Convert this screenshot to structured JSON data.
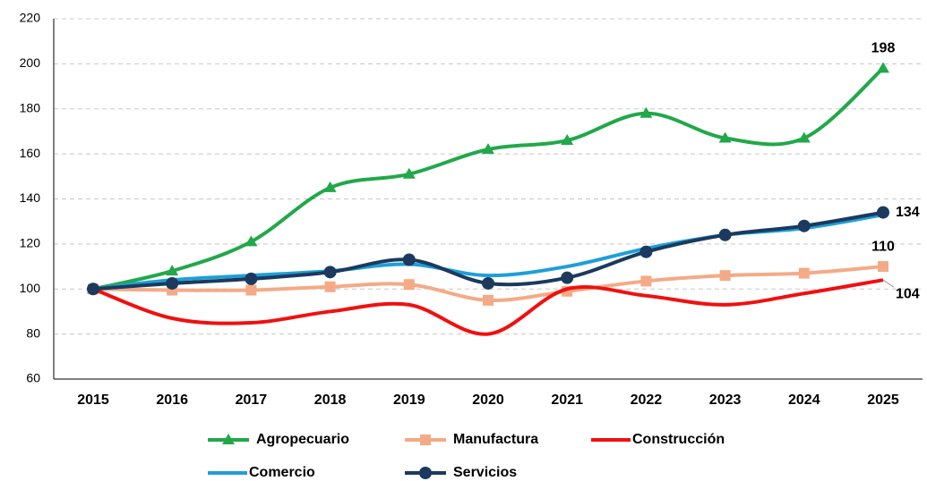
{
  "chart_data": {
    "type": "line",
    "categories": [
      "2015",
      "2016",
      "2017",
      "2018",
      "2019",
      "2020",
      "2021",
      "2022",
      "2023",
      "2024",
      "2025"
    ],
    "ylim": [
      60,
      220
    ],
    "yticks": [
      60,
      80,
      100,
      120,
      140,
      160,
      180,
      200,
      220
    ],
    "grid": true,
    "smooth": true,
    "series": [
      {
        "name": "Agropecuario",
        "color": "#21a84a",
        "marker": "triangle",
        "values": [
          100,
          108,
          121,
          145,
          151,
          162,
          166,
          178,
          167,
          167,
          198
        ],
        "value_labels": [
          null,
          null,
          null,
          null,
          null,
          null,
          null,
          null,
          null,
          null,
          "198"
        ]
      },
      {
        "name": "Manufactura",
        "color": "#f4aa86",
        "marker": "square",
        "values": [
          100,
          99.5,
          99.5,
          101,
          102,
          95,
          99,
          103.5,
          106,
          107,
          110
        ],
        "value_labels": [
          null,
          null,
          null,
          null,
          null,
          null,
          null,
          null,
          null,
          null,
          "110"
        ]
      },
      {
        "name": "Construcción",
        "color": "#f01010",
        "marker": "none",
        "values": [
          100,
          87,
          85,
          90,
          93,
          80,
          100,
          97,
          93,
          98,
          104
        ],
        "value_labels": [
          null,
          null,
          null,
          null,
          null,
          null,
          null,
          null,
          null,
          null,
          "104"
        ]
      },
      {
        "name": "Comercio",
        "color": "#1e9fd8",
        "marker": "none",
        "values": [
          100,
          104,
          106,
          108,
          111,
          106,
          110,
          118,
          124,
          127,
          133
        ],
        "value_labels": [
          null,
          null,
          null,
          null,
          null,
          null,
          null,
          null,
          null,
          null,
          null
        ]
      },
      {
        "name": "Servicios",
        "color": "#1b3a5e",
        "marker": "circle",
        "values": [
          100,
          102.5,
          104.5,
          107.5,
          113,
          102.5,
          105,
          116.5,
          124,
          128,
          134
        ],
        "value_labels": [
          null,
          null,
          null,
          null,
          null,
          null,
          null,
          null,
          null,
          null,
          "134"
        ]
      }
    ]
  }
}
